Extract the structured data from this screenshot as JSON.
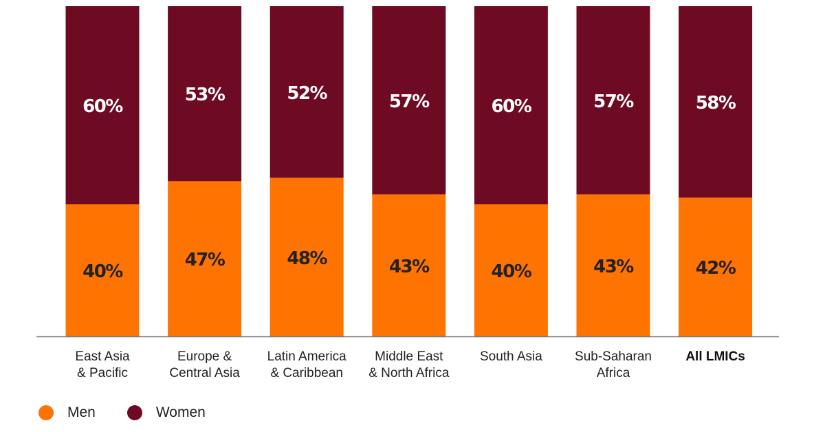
{
  "chart_data": {
    "type": "bar",
    "stacked": true,
    "categories": [
      [
        "East Asia",
        "& Pacific"
      ],
      [
        "Europe &",
        "Central Asia"
      ],
      [
        "Latin America",
        "& Caribbean"
      ],
      [
        "Middle East",
        "& North Africa"
      ],
      [
        "South Asia"
      ],
      [
        "Sub-Saharan",
        "Africa"
      ],
      [
        "All LMICs"
      ]
    ],
    "bold_categories": [
      6
    ],
    "series": [
      {
        "name": "Men",
        "values": [
          40,
          47,
          48,
          43,
          40,
          43,
          42
        ],
        "labels": [
          "40%",
          "47%",
          "48%",
          "43%",
          "40%",
          "43%",
          "42%"
        ],
        "color": "#FF7300",
        "label_color": "#222222"
      },
      {
        "name": "Women",
        "values": [
          60,
          53,
          52,
          57,
          60,
          57,
          58
        ],
        "labels": [
          "60%",
          "53%",
          "52%",
          "57%",
          "60%",
          "57%",
          "58%"
        ],
        "color": "#6E0A22",
        "label_color": "#ffffff"
      }
    ],
    "ylim": [
      0,
      100
    ],
    "grid": false,
    "legend_position": "bottom-left"
  },
  "legend": {
    "men_label": "Men",
    "women_label": "Women",
    "men_color": "#FF7300",
    "women_color": "#6E0A22"
  }
}
